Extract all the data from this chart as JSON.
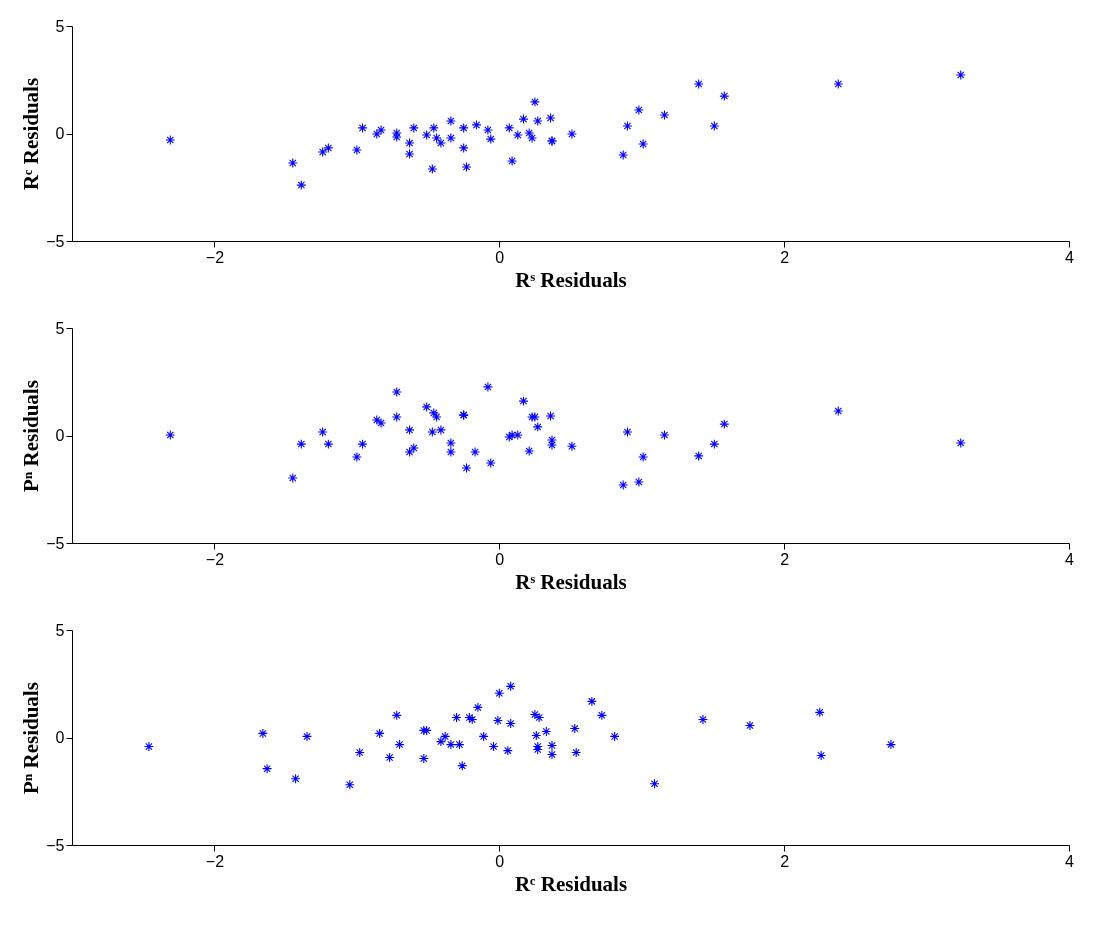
{
  "chart_data": [
    {
      "type": "scatter",
      "xlabel": "Rˢ Residuals",
      "ylabel": "Rᶜ Residuals",
      "xlim": [
        -3,
        4
      ],
      "xticks": [
        -2,
        0,
        2,
        4
      ],
      "ylim": [
        -5,
        5
      ],
      "yticks": [
        -5,
        0,
        5
      ],
      "grid": false,
      "marker": "cross",
      "series": [
        {
          "color": "#0000ff",
          "x": [
            -2.31,
            -1.45,
            -1.39,
            -1.24,
            -1.2,
            -1.0,
            -0.96,
            -0.86,
            -0.83,
            -0.72,
            -0.72,
            -0.63,
            -0.63,
            -0.6,
            -0.51,
            -0.47,
            -0.46,
            -0.44,
            -0.41,
            -0.34,
            -0.34,
            -0.25,
            -0.25,
            -0.23,
            -0.16,
            -0.08,
            -0.06,
            0.07,
            0.09,
            0.13,
            0.17,
            0.21,
            0.23,
            0.25,
            0.27,
            0.36,
            0.37,
            0.37,
            0.51,
            0.87,
            0.9,
            0.98,
            1.01,
            1.16,
            1.4,
            1.51,
            1.58,
            2.38,
            3.24
          ],
          "values": [
            -0.3,
            -1.37,
            -2.4,
            -0.86,
            -0.67,
            -0.77,
            0.26,
            -0.02,
            0.16,
            0.02,
            -0.16,
            -0.44,
            -0.95,
            0.26,
            -0.07,
            -1.65,
            0.26,
            -0.21,
            -0.44,
            -0.21,
            0.58,
            0.26,
            -0.67,
            -1.56,
            0.4,
            0.16,
            -0.26,
            0.26,
            -1.28,
            -0.07,
            0.67,
            0.02,
            -0.21,
            1.47,
            0.58,
            0.72,
            -0.35,
            -0.35,
            -0.02,
            -1.0,
            0.35,
            1.09,
            -0.49,
            0.86,
            2.3,
            0.35,
            1.74,
            2.3,
            2.72
          ]
        }
      ]
    },
    {
      "type": "scatter",
      "xlabel": "Rˢ Residuals",
      "ylabel": "Pⁿ Residuals",
      "xlim": [
        -3,
        4
      ],
      "xticks": [
        -2,
        0,
        2,
        4
      ],
      "ylim": [
        -5,
        5
      ],
      "yticks": [
        -5,
        0,
        5
      ],
      "grid": false,
      "marker": "cross",
      "series": [
        {
          "color": "#0000ff",
          "x": [
            -2.31,
            -1.45,
            -1.39,
            -1.24,
            -1.2,
            -1.0,
            -0.96,
            -0.86,
            -0.83,
            -0.72,
            -0.72,
            -0.63,
            -0.63,
            -0.6,
            -0.51,
            -0.47,
            -0.46,
            -0.44,
            -0.41,
            -0.34,
            -0.34,
            -0.25,
            -0.25,
            -0.23,
            -0.17,
            -0.08,
            -0.06,
            0.07,
            0.09,
            0.13,
            0.17,
            0.21,
            0.23,
            0.25,
            0.27,
            0.36,
            0.37,
            0.37,
            0.51,
            0.87,
            0.9,
            0.98,
            1.01,
            1.16,
            1.4,
            1.51,
            1.58,
            2.38,
            3.24
          ],
          "values": [
            0.02,
            -1.98,
            -0.4,
            0.16,
            -0.4,
            -1.0,
            -0.4,
            0.72,
            0.58,
            2.02,
            0.86,
            0.26,
            -0.77,
            -0.58,
            1.33,
            0.16,
            1.05,
            0.86,
            0.26,
            -0.77,
            -0.35,
            0.95,
            0.95,
            -1.51,
            -0.77,
            2.26,
            -1.28,
            -0.07,
            0.02,
            0.02,
            1.6,
            -0.72,
            0.86,
            0.86,
            0.4,
            0.91,
            -0.21,
            -0.44,
            -0.5,
            -2.3,
            0.16,
            -2.16,
            -1.0,
            0.02,
            -0.95,
            -0.4,
            0.53,
            1.14,
            -0.35
          ]
        }
      ]
    },
    {
      "type": "scatter",
      "xlabel": "Rᶜ Residuals",
      "ylabel": "Pⁿ Residuals",
      "xlim": [
        -3,
        4
      ],
      "xticks": [
        -2,
        0,
        2,
        4
      ],
      "ylim": [
        -5,
        5
      ],
      "yticks": [
        -5,
        0,
        5
      ],
      "grid": false,
      "marker": "cross",
      "series": [
        {
          "color": "#0000ff",
          "x": [
            -2.46,
            -1.66,
            -1.63,
            -1.43,
            -1.35,
            -1.05,
            -0.98,
            -0.84,
            -0.77,
            -0.72,
            -0.7,
            -0.53,
            -0.51,
            -0.53,
            -0.41,
            -0.38,
            -0.34,
            -0.3,
            -0.28,
            -0.26,
            -0.21,
            -0.19,
            -0.15,
            -0.11,
            -0.04,
            -0.01,
            0.0,
            0.06,
            0.08,
            0.08,
            0.25,
            0.28,
            0.26,
            0.27,
            0.27,
            0.33,
            0.37,
            0.37,
            0.53,
            0.54,
            0.65,
            0.72,
            0.81,
            1.09,
            1.43,
            1.76,
            2.25,
            2.26,
            2.75
          ],
          "values": [
            -0.42,
            0.19,
            -1.45,
            -1.92,
            0.05,
            -2.2,
            -0.7,
            0.19,
            -0.93,
            1.03,
            -0.33,
            0.33,
            0.33,
            -0.98,
            -0.19,
            0.05,
            -0.33,
            0.93,
            -0.33,
            -1.31,
            0.93,
            0.84,
            1.4,
            0.05,
            -0.42,
            0.79,
            2.06,
            -0.61,
            0.65,
            2.38,
            1.07,
            0.93,
            0.09,
            -0.42,
            -0.56,
            0.28,
            -0.37,
            -0.79,
            0.42,
            -0.7,
            1.68,
            1.03,
            0.05,
            -2.15,
            0.84,
            0.56,
            1.17,
            -0.84,
            -0.33
          ]
        }
      ]
    }
  ]
}
